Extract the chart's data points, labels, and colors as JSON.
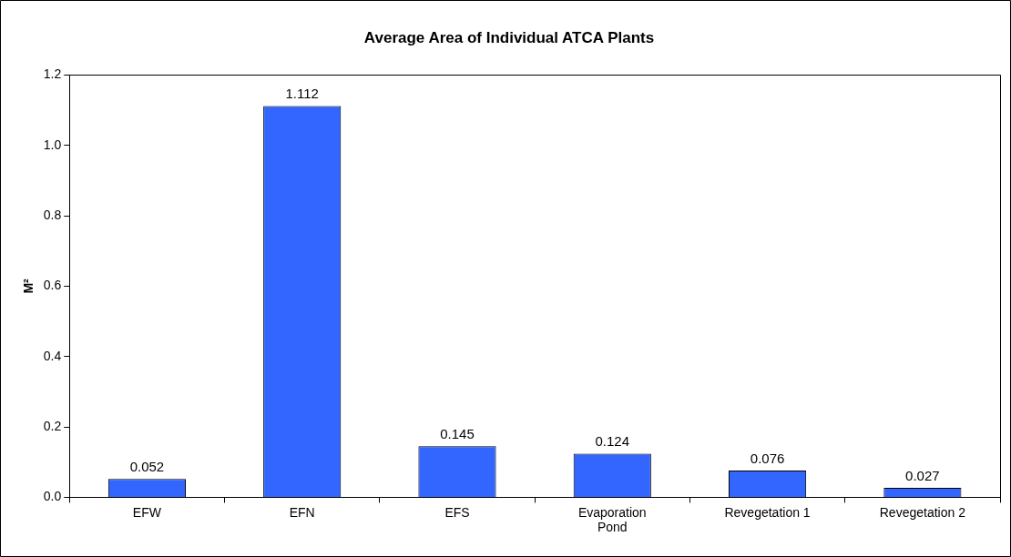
{
  "chart_data": {
    "type": "bar",
    "title": "Average Area of Individual ATCA Plants",
    "ylabel": "M²",
    "categories": [
      "EFW",
      "EFN",
      "EFS",
      "Evaporation Pond",
      "Revegetation 1",
      "Revegetation 2"
    ],
    "values": [
      0.052,
      1.112,
      0.145,
      0.124,
      0.076,
      0.027
    ],
    "color": "#3366ff",
    "ylim": [
      0,
      1.2
    ],
    "yticks": [
      {
        "value": 0,
        "label": "0.0"
      },
      0.2,
      0.4,
      0.6,
      0.8,
      {
        "value": 1,
        "label": "1.0"
      },
      1.2
    ],
    "data_labels": true
  }
}
